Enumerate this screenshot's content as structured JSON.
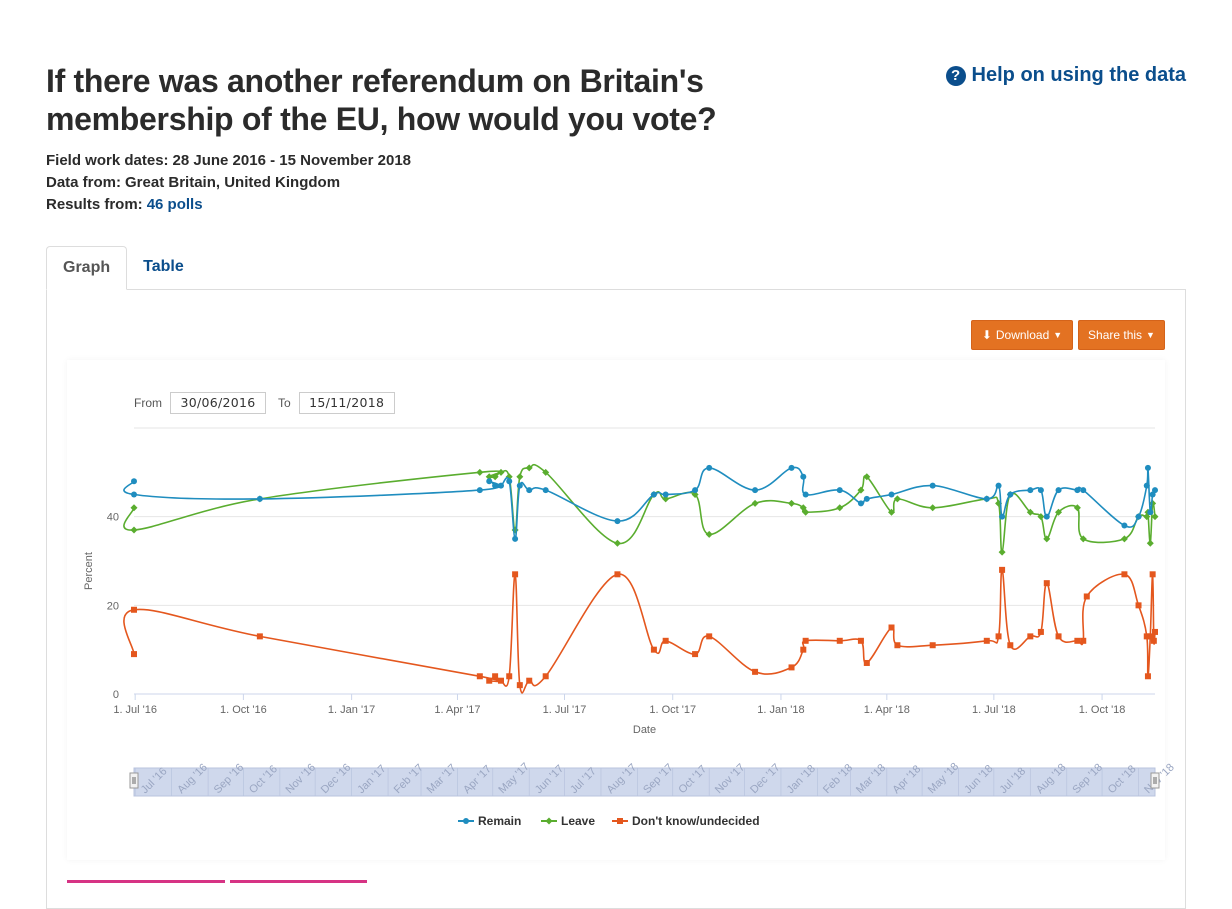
{
  "header": {
    "title": "If there was another referendum on Britain's membership of the EU, how would you vote?",
    "help_link": "Help on using the data",
    "help_icon": "question-circle-icon"
  },
  "meta": {
    "field_label": "Field work dates:",
    "field_value": "28 June 2016 - 15 November 2018",
    "data_label": "Data from:",
    "data_value": "Great Britain, United Kingdom",
    "results_label": "Results from:",
    "results_value": "46 polls"
  },
  "tabs": [
    {
      "label": "Graph",
      "active": true
    },
    {
      "label": "Table",
      "active": false
    }
  ],
  "toolbar": {
    "download_label": "Download",
    "download_icon": "download-icon",
    "share_label": "Share this"
  },
  "range": {
    "from_label": "From",
    "from_value": "30/06/2016",
    "to_label": "To",
    "to_value": "15/11/2018"
  },
  "colors": {
    "accent": "#e37222",
    "link": "#0b4e8c",
    "remain": "#1f8dbf",
    "leave": "#5aad2f",
    "dk": "#e4571e"
  },
  "chart_data": {
    "type": "line",
    "xlabel": "Date",
    "ylabel": "Percent",
    "ylim": [
      0,
      60
    ],
    "xlim": [
      "2016-06-30",
      "2018-11-15"
    ],
    "y_ticks": [
      0,
      20,
      40
    ],
    "x_ticks": [
      {
        "label": "1. Jul '16",
        "date": "2016-07-01"
      },
      {
        "label": "1. Oct '16",
        "date": "2016-10-01"
      },
      {
        "label": "1. Jan '17",
        "date": "2017-01-01"
      },
      {
        "label": "1. Apr '17",
        "date": "2017-04-01"
      },
      {
        "label": "1. Jul '17",
        "date": "2017-07-01"
      },
      {
        "label": "1. Oct '17",
        "date": "2017-10-01"
      },
      {
        "label": "1. Jan '18",
        "date": "2018-01-01"
      },
      {
        "label": "1. Apr '18",
        "date": "2018-04-01"
      },
      {
        "label": "1. Jul '18",
        "date": "2018-07-01"
      },
      {
        "label": "1. Oct '18",
        "date": "2018-10-01"
      }
    ],
    "navigator_months": [
      "Jul '16",
      "Aug '16",
      "Sep '16",
      "Oct '16",
      "Nov '16",
      "Dec '16",
      "Jan '17",
      "Feb '17",
      "Mar '17",
      "Apr '17",
      "May '17",
      "Jun '17",
      "Jul '17",
      "Aug '17",
      "Sep '17",
      "Oct '17",
      "Nov '17",
      "Dec '17",
      "Jan '18",
      "Feb '18",
      "Mar '18",
      "Apr '18",
      "May '18",
      "Jun '18",
      "Jul '18",
      "Aug '18",
      "Sep '18",
      "Oct '18",
      "Nov '18"
    ],
    "grid": true,
    "legend_position": "bottom-center",
    "series": [
      {
        "name": "Remain",
        "marker": "circle",
        "points": [
          [
            "2016-06-30",
            48
          ],
          [
            "2016-06-30",
            45
          ],
          [
            "2016-10-15",
            44
          ],
          [
            "2017-04-20",
            46
          ],
          [
            "2017-04-28",
            48
          ],
          [
            "2017-05-03",
            47
          ],
          [
            "2017-05-08",
            47
          ],
          [
            "2017-05-15",
            48
          ],
          [
            "2017-05-20",
            35
          ],
          [
            "2017-05-24",
            47
          ],
          [
            "2017-06-01",
            46
          ],
          [
            "2017-06-15",
            46
          ],
          [
            "2017-08-15",
            39
          ],
          [
            "2017-09-15",
            45
          ],
          [
            "2017-09-25",
            45
          ],
          [
            "2017-10-20",
            46
          ],
          [
            "2017-11-01",
            51
          ],
          [
            "2017-12-10",
            46
          ],
          [
            "2018-01-10",
            51
          ],
          [
            "2018-01-20",
            49
          ],
          [
            "2018-01-22",
            45
          ],
          [
            "2018-02-20",
            46
          ],
          [
            "2018-03-10",
            43
          ],
          [
            "2018-03-15",
            44
          ],
          [
            "2018-04-05",
            45
          ],
          [
            "2018-05-10",
            47
          ],
          [
            "2018-06-25",
            44
          ],
          [
            "2018-07-05",
            47
          ],
          [
            "2018-07-08",
            40
          ],
          [
            "2018-07-15",
            45
          ],
          [
            "2018-08-01",
            46
          ],
          [
            "2018-08-10",
            46
          ],
          [
            "2018-08-15",
            40
          ],
          [
            "2018-08-25",
            46
          ],
          [
            "2018-09-10",
            46
          ],
          [
            "2018-09-15",
            46
          ],
          [
            "2018-10-20",
            38
          ],
          [
            "2018-11-01",
            40
          ],
          [
            "2018-11-08",
            47
          ],
          [
            "2018-11-09",
            51
          ],
          [
            "2018-11-11",
            41
          ],
          [
            "2018-11-13",
            45
          ],
          [
            "2018-11-15",
            46
          ]
        ]
      },
      {
        "name": "Leave",
        "marker": "diamond",
        "points": [
          [
            "2016-06-30",
            42
          ],
          [
            "2016-06-30",
            37
          ],
          [
            "2016-10-15",
            44
          ],
          [
            "2017-04-20",
            50
          ],
          [
            "2017-04-28",
            49
          ],
          [
            "2017-05-03",
            49
          ],
          [
            "2017-05-08",
            50
          ],
          [
            "2017-05-15",
            49
          ],
          [
            "2017-05-20",
            37
          ],
          [
            "2017-05-24",
            49
          ],
          [
            "2017-06-01",
            51
          ],
          [
            "2017-06-15",
            50
          ],
          [
            "2017-08-15",
            34
          ],
          [
            "2017-09-15",
            45
          ],
          [
            "2017-09-25",
            44
          ],
          [
            "2017-10-20",
            45
          ],
          [
            "2017-11-01",
            36
          ],
          [
            "2017-12-10",
            43
          ],
          [
            "2018-01-10",
            43
          ],
          [
            "2018-01-20",
            42
          ],
          [
            "2018-01-22",
            41
          ],
          [
            "2018-02-20",
            42
          ],
          [
            "2018-03-10",
            46
          ],
          [
            "2018-03-15",
            49
          ],
          [
            "2018-04-05",
            41
          ],
          [
            "2018-04-10",
            44
          ],
          [
            "2018-05-10",
            42
          ],
          [
            "2018-06-25",
            44
          ],
          [
            "2018-07-05",
            43
          ],
          [
            "2018-07-08",
            32
          ],
          [
            "2018-07-15",
            45
          ],
          [
            "2018-08-01",
            41
          ],
          [
            "2018-08-10",
            40
          ],
          [
            "2018-08-15",
            35
          ],
          [
            "2018-08-25",
            41
          ],
          [
            "2018-09-10",
            42
          ],
          [
            "2018-09-15",
            35
          ],
          [
            "2018-10-20",
            35
          ],
          [
            "2018-11-01",
            40
          ],
          [
            "2018-11-08",
            40
          ],
          [
            "2018-11-09",
            41
          ],
          [
            "2018-11-11",
            34
          ],
          [
            "2018-11-13",
            43
          ],
          [
            "2018-11-15",
            40
          ]
        ]
      },
      {
        "name": "Don't know/undecided",
        "marker": "square",
        "points": [
          [
            "2016-06-30",
            9
          ],
          [
            "2016-06-30",
            19
          ],
          [
            "2016-10-15",
            13
          ],
          [
            "2017-04-20",
            4
          ],
          [
            "2017-04-28",
            3
          ],
          [
            "2017-05-03",
            4
          ],
          [
            "2017-05-08",
            3
          ],
          [
            "2017-05-15",
            4
          ],
          [
            "2017-05-20",
            27
          ],
          [
            "2017-05-24",
            2
          ],
          [
            "2017-06-01",
            3
          ],
          [
            "2017-06-15",
            4
          ],
          [
            "2017-08-15",
            27
          ],
          [
            "2017-09-15",
            10
          ],
          [
            "2017-09-25",
            12
          ],
          [
            "2017-10-20",
            9
          ],
          [
            "2017-11-01",
            13
          ],
          [
            "2017-12-10",
            5
          ],
          [
            "2018-01-10",
            6
          ],
          [
            "2018-01-20",
            10
          ],
          [
            "2018-01-22",
            12
          ],
          [
            "2018-02-20",
            12
          ],
          [
            "2018-03-10",
            12
          ],
          [
            "2018-03-15",
            7
          ],
          [
            "2018-04-05",
            15
          ],
          [
            "2018-04-10",
            11
          ],
          [
            "2018-05-10",
            11
          ],
          [
            "2018-06-25",
            12
          ],
          [
            "2018-07-05",
            13
          ],
          [
            "2018-07-08",
            28
          ],
          [
            "2018-07-15",
            11
          ],
          [
            "2018-08-01",
            13
          ],
          [
            "2018-08-10",
            14
          ],
          [
            "2018-08-15",
            25
          ],
          [
            "2018-08-25",
            13
          ],
          [
            "2018-09-10",
            12
          ],
          [
            "2018-09-15",
            12
          ],
          [
            "2018-09-18",
            22
          ],
          [
            "2018-10-20",
            27
          ],
          [
            "2018-11-01",
            20
          ],
          [
            "2018-11-08",
            13
          ],
          [
            "2018-11-09",
            4
          ],
          [
            "2018-11-11",
            13
          ],
          [
            "2018-11-13",
            27
          ],
          [
            "2018-11-14",
            12
          ],
          [
            "2018-11-15",
            14
          ]
        ]
      }
    ]
  }
}
